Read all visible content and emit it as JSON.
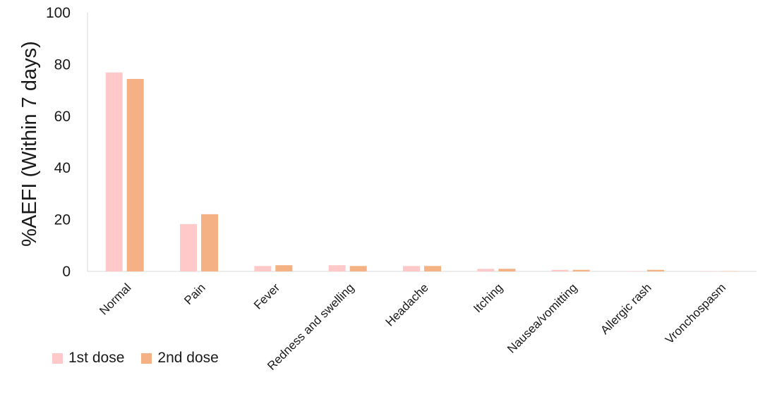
{
  "chart_data": {
    "type": "bar",
    "title": "",
    "xlabel": "",
    "ylabel": "%AEFI (Within 7 days)",
    "ylim": [
      0,
      100
    ],
    "yticks": [
      0,
      20,
      40,
      60,
      80,
      100
    ],
    "grid": false,
    "legend_position": "bottom-left",
    "categories": [
      "Normal",
      "Pain",
      "Fever",
      "Redness and swelling",
      "Headache",
      "Itching",
      "Nausea/vomitting",
      "Allergic rash",
      "Vronchospasm"
    ],
    "series": [
      {
        "name": "1st dose",
        "color": "#ffc9c9",
        "values": [
          76.9,
          18.3,
          2.1,
          2.4,
          2.1,
          1.0,
          0.6,
          0.1,
          0.1
        ]
      },
      {
        "name": "2nd dose",
        "color": "#f4b183",
        "values": [
          74.4,
          22.1,
          2.4,
          2.1,
          2.1,
          1.0,
          0.6,
          0.6,
          0.1
        ]
      }
    ]
  }
}
